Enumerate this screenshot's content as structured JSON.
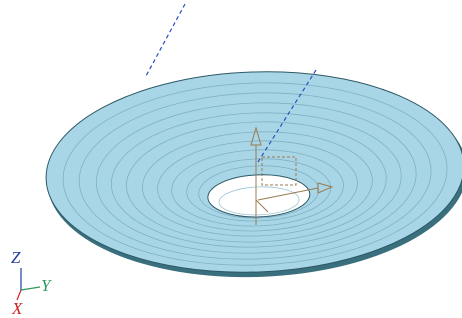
{
  "triad": {
    "z": "Z",
    "y": "Y",
    "x": "X"
  }
}
